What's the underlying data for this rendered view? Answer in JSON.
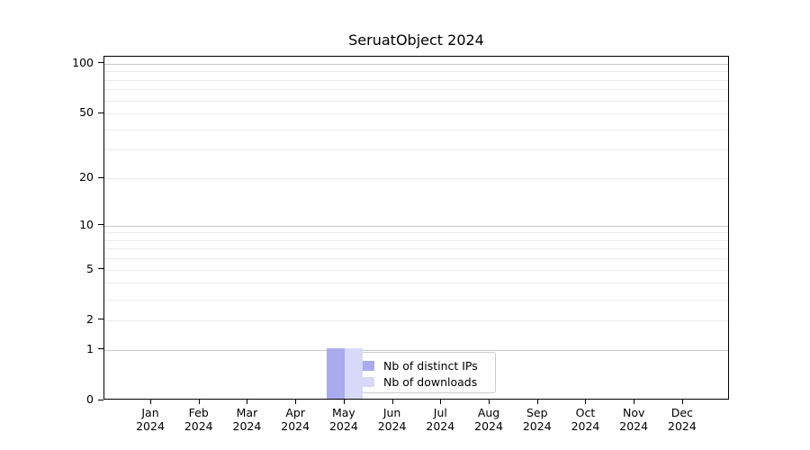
{
  "figure": {
    "background": "#ffffff"
  },
  "chart_data": {
    "type": "bar",
    "title": "SeruatObject 2024",
    "categories": [
      "Jan 2024",
      "Feb 2024",
      "Mar 2024",
      "Apr 2024",
      "May 2024",
      "Jun 2024",
      "Jul 2024",
      "Aug 2024",
      "Sep 2024",
      "Oct 2024",
      "Nov 2024",
      "Dec 2024"
    ],
    "x_tick_months": [
      "Jan",
      "Feb",
      "Mar",
      "Apr",
      "May",
      "Jun",
      "Jul",
      "Aug",
      "Sep",
      "Oct",
      "Nov",
      "Dec"
    ],
    "x_tick_year": "2024",
    "series": [
      {
        "name": "Nb of distinct IPs",
        "color": "#aaaaee",
        "values": [
          0,
          0,
          0,
          0,
          1,
          0,
          0,
          0,
          0,
          0,
          0,
          0
        ]
      },
      {
        "name": "Nb of downloads",
        "color": "#d8d8f8",
        "values": [
          0,
          0,
          0,
          0,
          1,
          0,
          0,
          0,
          0,
          0,
          0,
          0
        ]
      }
    ],
    "xlabel": "",
    "ylabel": "",
    "y_axis": {
      "scale": "log1p",
      "tick_values": [
        0,
        1,
        2,
        5,
        10,
        20,
        50,
        100
      ],
      "max": 110,
      "major_gridlines": [
        1,
        10,
        100
      ],
      "minor_gridlines": [
        2,
        3,
        4,
        5,
        6,
        7,
        8,
        9,
        20,
        30,
        40,
        50,
        60,
        70,
        80,
        90
      ]
    },
    "legend": {
      "entries": [
        "Nb of distinct IPs",
        "Nb of downloads"
      ],
      "position": "lower center, overlapping May bars"
    },
    "grid": true
  },
  "colors": {
    "axis": "#000000",
    "major_grid": "#c8c8c8",
    "minor_grid": "#ebebeb",
    "legend_border": "#cccccc",
    "legend_background": "rgba(255,255,255,0.8)",
    "distinct_ips_bar": "#aaaaee",
    "downloads_bar": "#d8d8f8"
  }
}
